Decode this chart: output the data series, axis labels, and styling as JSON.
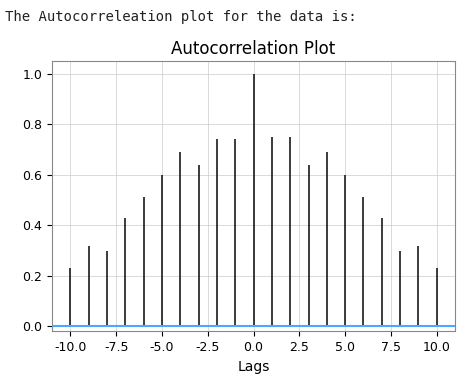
{
  "title": "Autocorrelation Plot",
  "xlabel": "Lags",
  "suptitle": "The Autocorreleation plot for the data is:",
  "lags": [
    -10,
    -9,
    -8,
    -7,
    -6,
    -5,
    -4,
    -3,
    -2,
    -1,
    0,
    1,
    2,
    3,
    4,
    5,
    6,
    7,
    8,
    9,
    10
  ],
  "acf_values": [
    0.23,
    0.32,
    0.3,
    0.43,
    0.51,
    0.6,
    0.69,
    0.64,
    0.74,
    0.74,
    1.0,
    0.75,
    0.75,
    0.64,
    0.69,
    0.6,
    0.51,
    0.43,
    0.3,
    0.32,
    0.23
  ],
  "bar_color": "#1a1a1a",
  "hline_color": "#4da6ff",
  "hline_y": 0.0,
  "ylim": [
    -0.02,
    1.05
  ],
  "xlim": [
    -11,
    11
  ],
  "grid": true,
  "background_color": "#ffffff",
  "title_fontsize": 12,
  "suptitle_fontsize": 10,
  "suptitle_fontfamily": "monospace",
  "tick_label_size": 9,
  "xlabel_fontsize": 10
}
